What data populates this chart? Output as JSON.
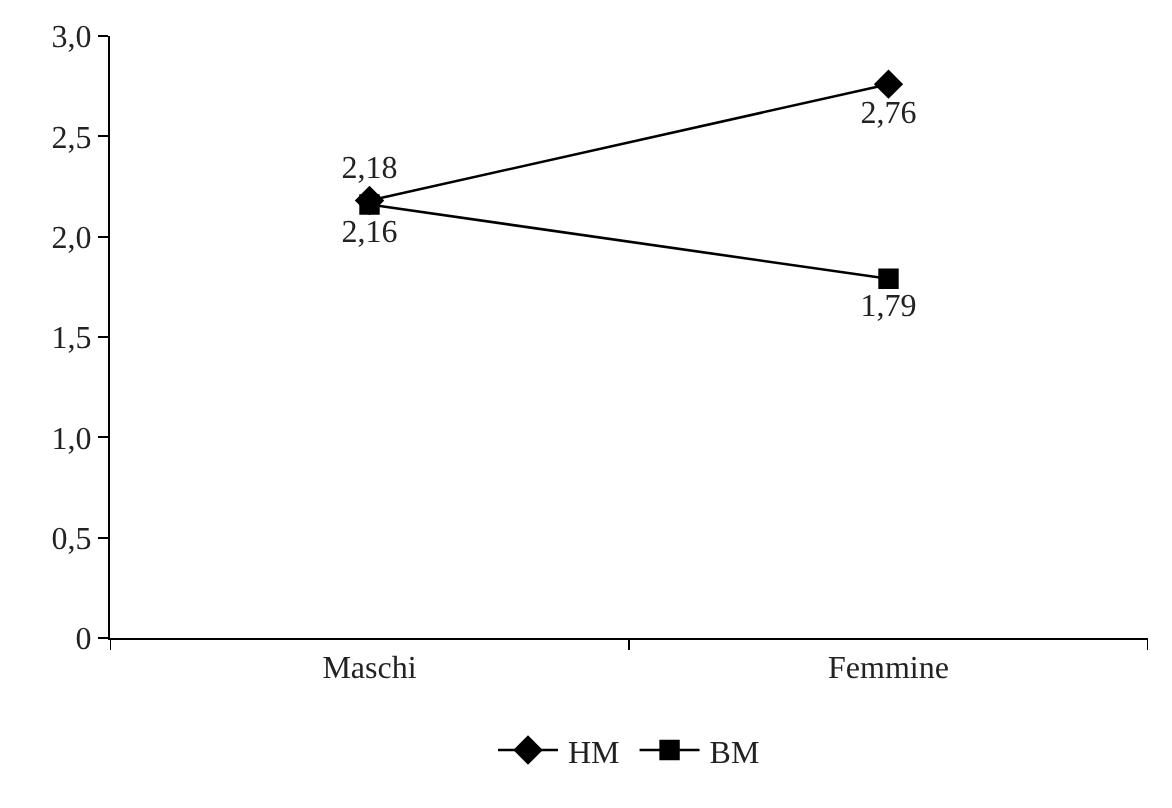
{
  "chart_data": {
    "type": "line",
    "categories": [
      "Maschi",
      "Femmine"
    ],
    "series": [
      {
        "name": "HM",
        "color": "#000000",
        "marker": "diamond",
        "values": [
          2.18,
          2.76
        ],
        "value_labels": [
          "2,18",
          "2,76"
        ]
      },
      {
        "name": "BM",
        "color": "#000000",
        "marker": "square",
        "values": [
          2.16,
          1.79
        ],
        "value_labels": [
          "2,16",
          "1,79"
        ]
      }
    ],
    "ylim": [
      0,
      3
    ],
    "yticks": [
      0,
      {
        "value": 0.5,
        "label": "0,5"
      },
      {
        "value": 1,
        "label": "1,0"
      },
      {
        "value": 1.5,
        "label": "1,5"
      },
      {
        "value": 2,
        "label": "2,0"
      },
      {
        "value": 2.5,
        "label": "2,5"
      },
      {
        "value": 3,
        "label": "3,0"
      }
    ],
    "grid": false,
    "legend": "bottom",
    "line_style": "solid"
  }
}
